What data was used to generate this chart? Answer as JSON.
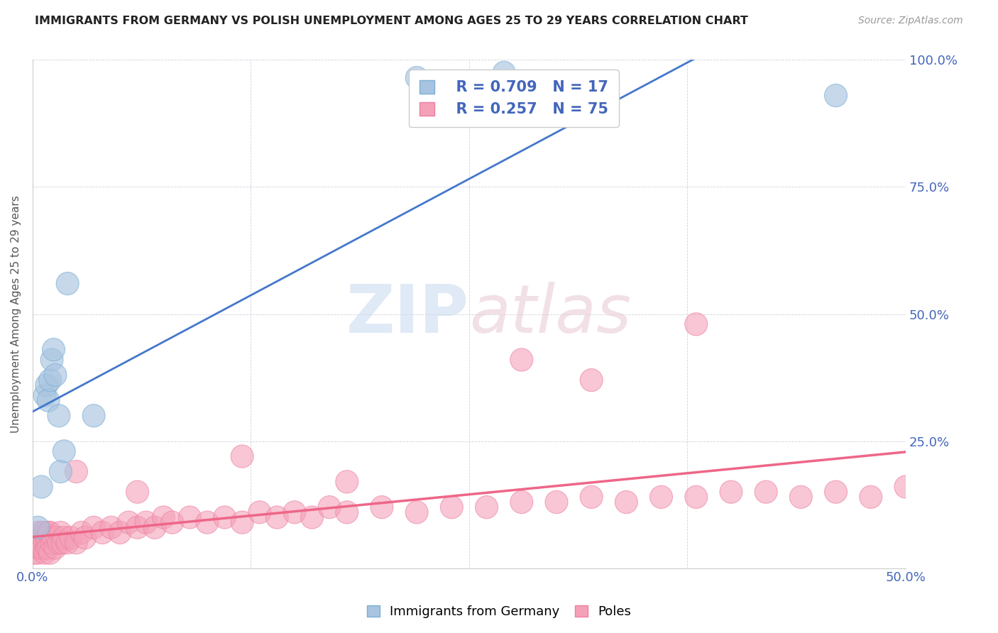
{
  "title": "IMMIGRANTS FROM GERMANY VS POLISH UNEMPLOYMENT AMONG AGES 25 TO 29 YEARS CORRELATION CHART",
  "source": "Source: ZipAtlas.com",
  "ylabel": "Unemployment Among Ages 25 to 29 years",
  "xlim": [
    0.0,
    0.5
  ],
  "ylim": [
    0.0,
    1.0
  ],
  "blue_color": "#A8C4E0",
  "pink_color": "#F4A0B8",
  "blue_edge_color": "#7BAFD4",
  "pink_edge_color": "#EC7FA0",
  "blue_line_color": "#4477CC",
  "pink_line_color": "#EE6688",
  "text_color": "#4466BB",
  "blue_R": 0.709,
  "blue_N": 17,
  "pink_R": 0.257,
  "pink_N": 75,
  "watermark_zip": "ZIP",
  "watermark_atlas": "atlas",
  "blue_scatter_x": [
    0.003,
    0.005,
    0.007,
    0.008,
    0.009,
    0.01,
    0.011,
    0.012,
    0.013,
    0.015,
    0.016,
    0.018,
    0.02,
    0.035,
    0.22,
    0.27,
    0.46
  ],
  "blue_scatter_y": [
    0.08,
    0.16,
    0.34,
    0.36,
    0.33,
    0.37,
    0.41,
    0.43,
    0.38,
    0.3,
    0.19,
    0.23,
    0.56,
    0.3,
    0.965,
    0.975,
    0.93
  ],
  "pink_scatter_x": [
    0.001,
    0.002,
    0.002,
    0.003,
    0.003,
    0.004,
    0.004,
    0.005,
    0.005,
    0.006,
    0.006,
    0.007,
    0.007,
    0.008,
    0.008,
    0.009,
    0.009,
    0.01,
    0.01,
    0.011,
    0.012,
    0.013,
    0.014,
    0.015,
    0.016,
    0.017,
    0.018,
    0.02,
    0.022,
    0.025,
    0.028,
    0.03,
    0.035,
    0.04,
    0.045,
    0.05,
    0.055,
    0.06,
    0.065,
    0.07,
    0.075,
    0.08,
    0.09,
    0.1,
    0.11,
    0.12,
    0.13,
    0.14,
    0.15,
    0.16,
    0.17,
    0.18,
    0.2,
    0.22,
    0.24,
    0.26,
    0.28,
    0.3,
    0.32,
    0.34,
    0.36,
    0.38,
    0.4,
    0.42,
    0.44,
    0.46,
    0.48,
    0.5,
    0.025,
    0.06,
    0.12,
    0.18,
    0.28,
    0.32,
    0.38
  ],
  "pink_scatter_y": [
    0.03,
    0.04,
    0.06,
    0.03,
    0.07,
    0.04,
    0.06,
    0.04,
    0.07,
    0.04,
    0.06,
    0.03,
    0.07,
    0.04,
    0.06,
    0.04,
    0.07,
    0.03,
    0.07,
    0.05,
    0.06,
    0.04,
    0.06,
    0.05,
    0.07,
    0.05,
    0.06,
    0.05,
    0.06,
    0.05,
    0.07,
    0.06,
    0.08,
    0.07,
    0.08,
    0.07,
    0.09,
    0.08,
    0.09,
    0.08,
    0.1,
    0.09,
    0.1,
    0.09,
    0.1,
    0.09,
    0.11,
    0.1,
    0.11,
    0.1,
    0.12,
    0.11,
    0.12,
    0.11,
    0.12,
    0.12,
    0.13,
    0.13,
    0.14,
    0.13,
    0.14,
    0.14,
    0.15,
    0.15,
    0.14,
    0.15,
    0.14,
    0.16,
    0.19,
    0.15,
    0.22,
    0.17,
    0.41,
    0.37,
    0.48
  ]
}
